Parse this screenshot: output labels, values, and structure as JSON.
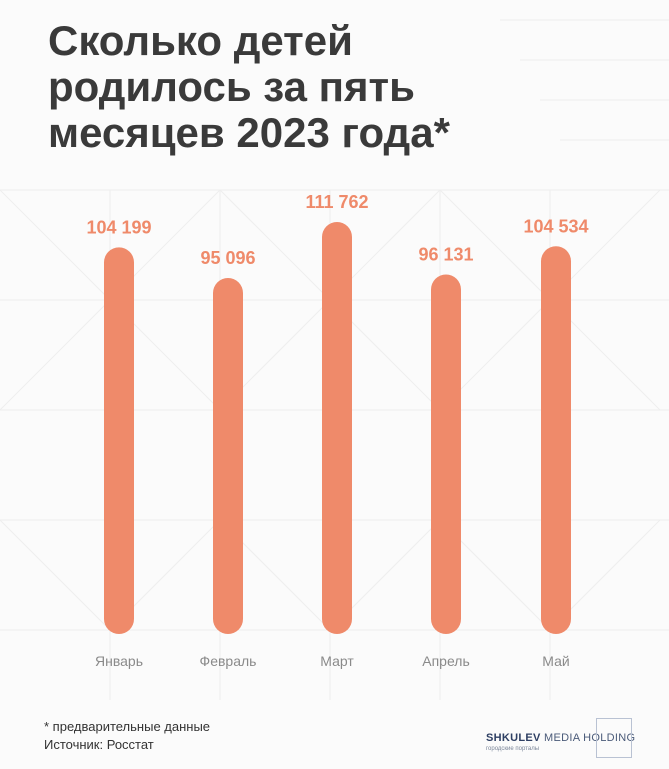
{
  "title_lines": [
    "Сколько детей",
    "родилось за пять",
    "месяцев 2023 года*"
  ],
  "chart_data": {
    "type": "bar",
    "categories": [
      "Январь",
      "Февраль",
      "Март",
      "Апрель",
      "Май"
    ],
    "values": [
      104199,
      95096,
      111762,
      96131,
      104534
    ],
    "value_labels": [
      "104 199",
      "95 096",
      "111 762",
      "96 131",
      "104 534"
    ],
    "bar_color": "#ef8a6a",
    "label_color": "#ef8a6a",
    "grid": false,
    "ylim": [
      0,
      111762
    ]
  },
  "footnote": {
    "note": "* предварительные данные",
    "source": "Источник: Росстат"
  },
  "brand": {
    "name_bold": "SHKULEV",
    "name_rest": " MEDIA HOLDING",
    "subtitle": "городские порталы"
  }
}
